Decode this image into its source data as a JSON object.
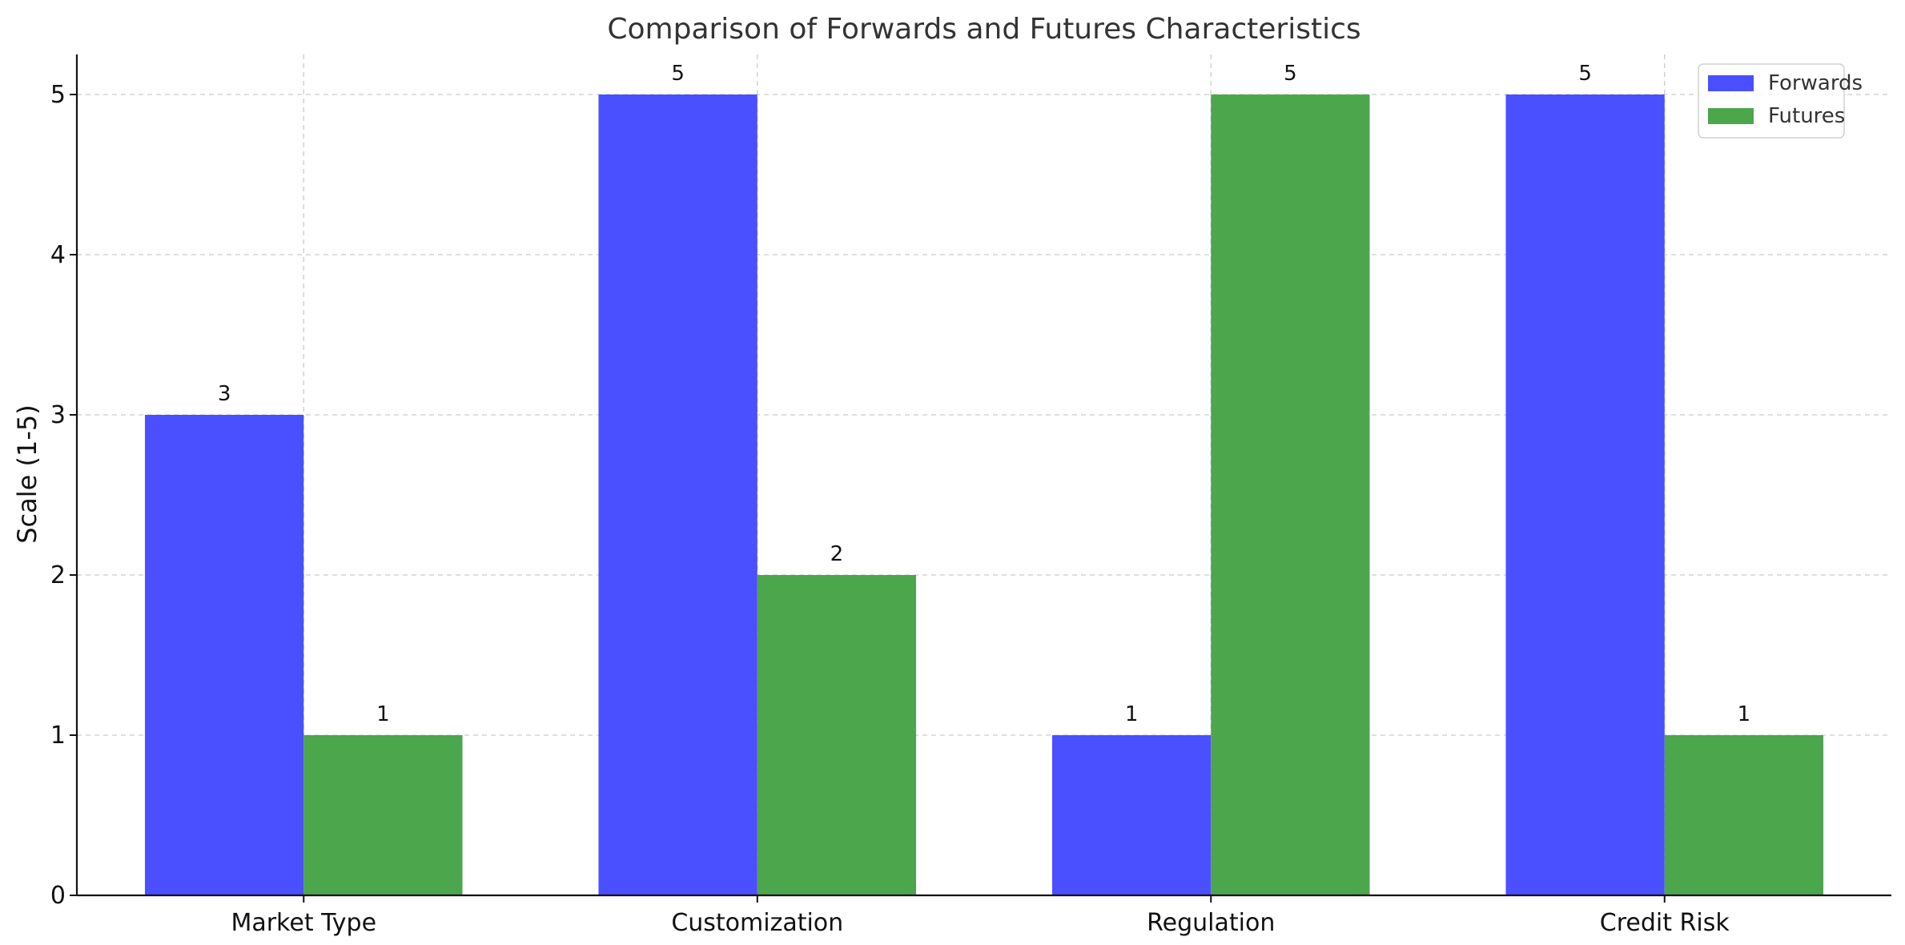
{
  "chart_data": {
    "type": "bar",
    "title": "Comparison of Forwards and Futures Characteristics",
    "xlabel": "",
    "ylabel": "Scale (1-5)",
    "categories": [
      "Market Type",
      "Customization",
      "Regulation",
      "Credit Risk"
    ],
    "series": [
      {
        "name": "Forwards",
        "values": [
          3,
          5,
          1,
          5
        ],
        "color": "#4a4fff"
      },
      {
        "name": "Futures",
        "values": [
          1,
          2,
          5,
          1
        ],
        "color": "#4ca64c"
      }
    ],
    "ylim": [
      0,
      5.25
    ],
    "yticks": [
      0,
      1,
      2,
      3,
      4,
      5
    ],
    "grid": true,
    "legend_position": "top-right",
    "data_labels": true
  }
}
